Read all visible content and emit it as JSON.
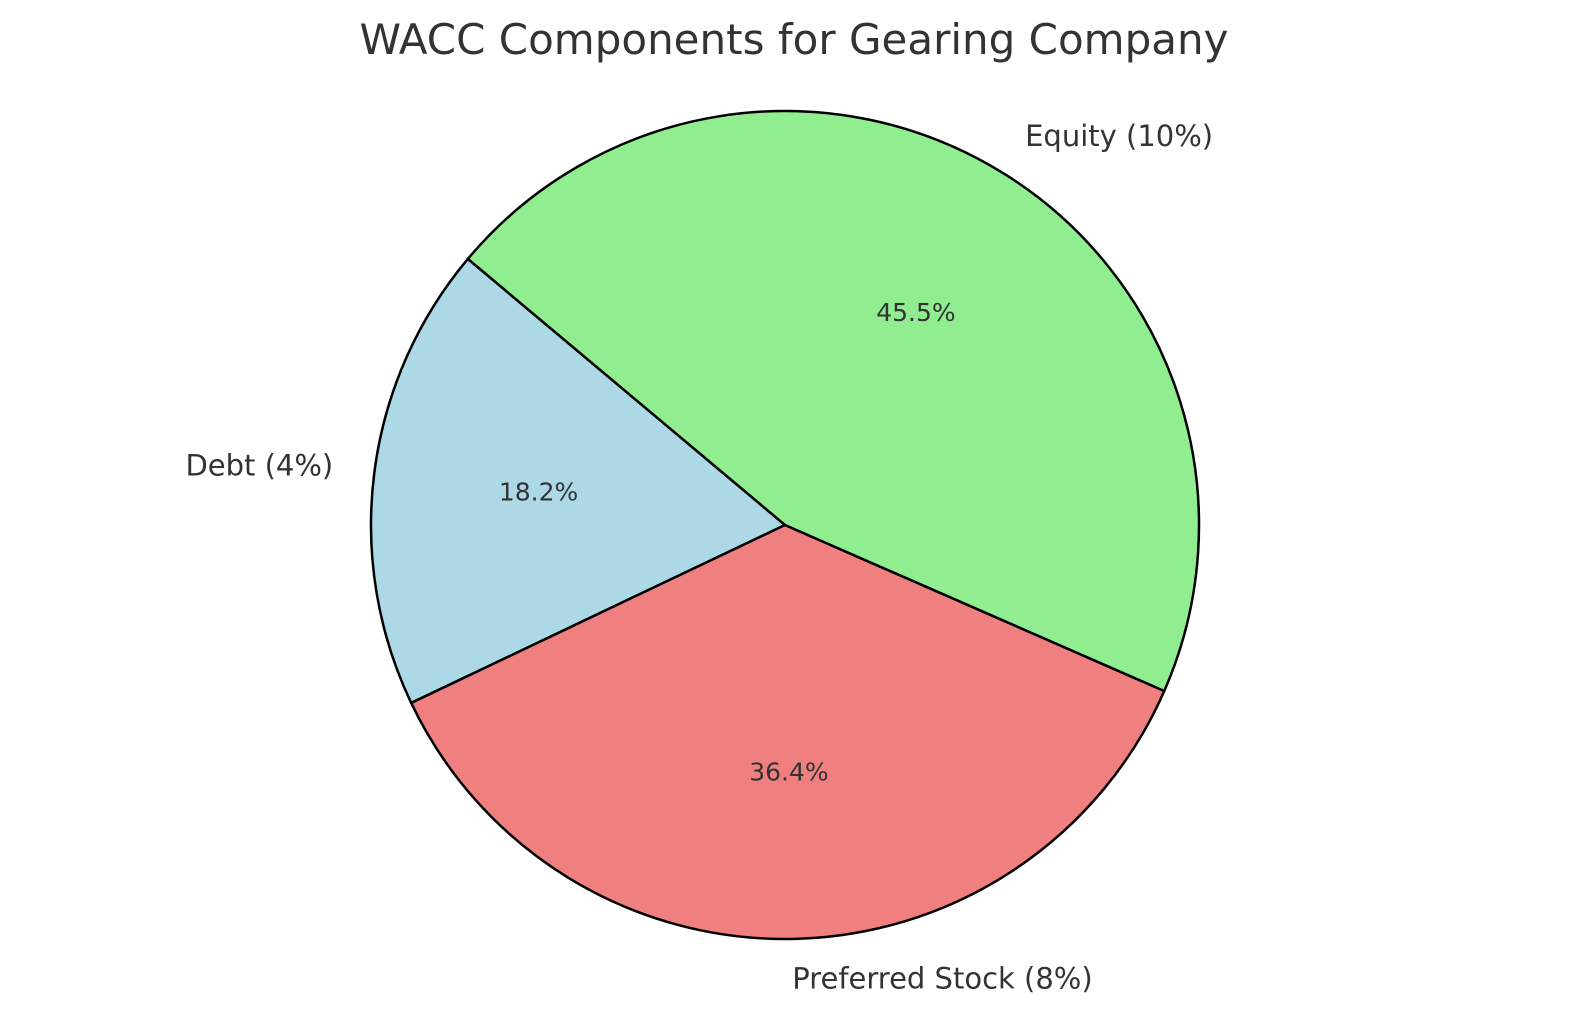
{
  "chart_data": {
    "type": "pie",
    "title": "WACC Components for Gearing Company",
    "slices": [
      {
        "label": "Debt (4%)",
        "value": 4,
        "percent_label": "18.2%",
        "color": "#add8e6"
      },
      {
        "label": "Preferred Stock (8%)",
        "value": 8,
        "percent_label": "36.4%",
        "color": "#f08080"
      },
      {
        "label": "Equity (10%)",
        "value": 10,
        "percent_label": "45.5%",
        "color": "#90ee90"
      }
    ],
    "start_angle_deg": 140,
    "direction": "counterclockwise",
    "legend": "none"
  }
}
